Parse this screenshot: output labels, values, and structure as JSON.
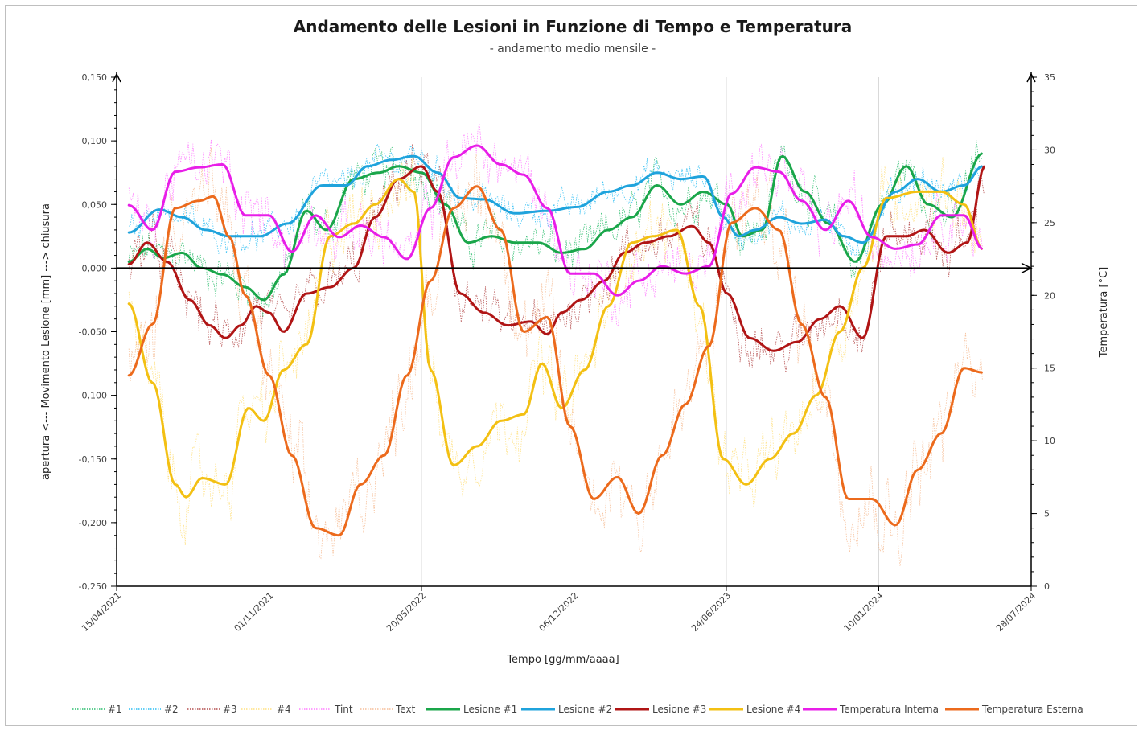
{
  "chart_data": {
    "type": "line",
    "title": "Andamento delle Lesioni in Funzione di Tempo e Temperatura",
    "subtitle": "- andamento medio mensile -",
    "xlabel": "Tempo   [gg/mm/aaaa]",
    "ylabel": "apertura   <---    Movimento Lesione   [mm]    --->   chiusura",
    "y2label": "Temperatura   [°C]",
    "x_axis": {
      "type": "date",
      "min": "2021-04-15",
      "max": "2024-07-28",
      "tick_labels": [
        "15/04/2021",
        "01/11/2021",
        "20/05/2022",
        "06/12/2022",
        "24/06/2023",
        "10/01/2024",
        "28/07/2024"
      ],
      "tick_dates": [
        "2021-04-15",
        "2021-11-01",
        "2022-05-20",
        "2022-12-06",
        "2023-06-24",
        "2024-01-10",
        "2024-07-28"
      ]
    },
    "y_axis": {
      "min": -0.25,
      "max": 0.15,
      "ticks": [
        0.15,
        0.1,
        0.05,
        0.0,
        -0.05,
        -0.1,
        -0.15,
        -0.2,
        -0.25
      ],
      "tick_labels": [
        "0,150",
        "0,100",
        "0,050",
        "0,000",
        "-0,050",
        "-0,100",
        "-0,150",
        "-0,200",
        "-0,250"
      ]
    },
    "y2_axis": {
      "min": 0,
      "max": 35,
      "ticks": [
        35,
        30,
        25,
        20,
        15,
        10,
        5,
        0
      ],
      "tick_labels": [
        "35",
        "30",
        "25",
        "20",
        "15",
        "10",
        "5",
        "0"
      ]
    },
    "grid": "vertical",
    "legend_position": "bottom",
    "series": [
      {
        "name": "#1",
        "axis": "y",
        "style": "dotted",
        "color": "#00b050",
        "raw_of": "Lesione #1",
        "noise": 0.014
      },
      {
        "name": "#2",
        "axis": "y",
        "style": "dotted",
        "color": "#00b0f0",
        "raw_of": "Lesione #2",
        "noise": 0.01
      },
      {
        "name": "#3",
        "axis": "y",
        "style": "dotted",
        "color": "#a52a2a",
        "raw_of": "Lesione #3",
        "noise": 0.016
      },
      {
        "name": "#4",
        "axis": "y",
        "style": "dotted",
        "color": "#ffd966",
        "raw_of": "Lesione #4",
        "noise": 0.022
      },
      {
        "name": "Tint",
        "axis": "y2",
        "style": "dotted",
        "color": "#ff66ff",
        "raw_of": "Temperatura Interna",
        "noise": 1.6
      },
      {
        "name": "Text",
        "axis": "y2",
        "style": "dotted",
        "color": "#f4b183",
        "raw_of": "Temperatura Esterna",
        "noise": 2.4
      },
      {
        "name": "Lesione #1",
        "axis": "y",
        "style": "solid",
        "color": "#1aa64a",
        "points": [
          [
            "2021-05-01",
            0.005
          ],
          [
            "2021-05-25",
            0.015
          ],
          [
            "2021-06-15",
            0.008
          ],
          [
            "2021-07-10",
            0.012
          ],
          [
            "2021-08-05",
            0.0
          ],
          [
            "2021-09-01",
            -0.005
          ],
          [
            "2021-10-01",
            -0.015
          ],
          [
            "2021-10-25",
            -0.025
          ],
          [
            "2021-11-20",
            -0.005
          ],
          [
            "2021-12-20",
            0.045
          ],
          [
            "2022-01-15",
            0.03
          ],
          [
            "2022-02-20",
            0.07
          ],
          [
            "2022-03-25",
            0.075
          ],
          [
            "2022-04-20",
            0.08
          ],
          [
            "2022-05-20",
            0.075
          ],
          [
            "2022-06-20",
            0.05
          ],
          [
            "2022-07-20",
            0.02
          ],
          [
            "2022-08-20",
            0.025
          ],
          [
            "2022-09-20",
            0.02
          ],
          [
            "2022-10-20",
            0.02
          ],
          [
            "2022-11-20",
            0.012
          ],
          [
            "2022-12-20",
            0.015
          ],
          [
            "2023-01-20",
            0.03
          ],
          [
            "2023-02-20",
            0.04
          ],
          [
            "2023-03-25",
            0.065
          ],
          [
            "2023-04-25",
            0.05
          ],
          [
            "2023-05-25",
            0.06
          ],
          [
            "2023-06-25",
            0.05
          ],
          [
            "2023-07-15",
            0.025
          ],
          [
            "2023-08-10",
            0.03
          ],
          [
            "2023-09-05",
            0.088
          ],
          [
            "2023-10-05",
            0.06
          ],
          [
            "2023-11-05",
            0.035
          ],
          [
            "2023-12-10",
            0.005
          ],
          [
            "2024-01-15",
            0.05
          ],
          [
            "2024-02-15",
            0.08
          ],
          [
            "2024-03-15",
            0.05
          ],
          [
            "2024-04-15",
            0.04
          ],
          [
            "2024-05-25",
            0.09
          ]
        ]
      },
      {
        "name": "Lesione #2",
        "axis": "y",
        "style": "solid",
        "color": "#1fa3dc",
        "points": [
          [
            "2021-05-01",
            0.028
          ],
          [
            "2021-06-10",
            0.046
          ],
          [
            "2021-07-10",
            0.04
          ],
          [
            "2021-08-10",
            0.03
          ],
          [
            "2021-09-10",
            0.025
          ],
          [
            "2021-10-20",
            0.025
          ],
          [
            "2021-11-25",
            0.035
          ],
          [
            "2022-01-10",
            0.065
          ],
          [
            "2022-02-10",
            0.065
          ],
          [
            "2022-03-10",
            0.08
          ],
          [
            "2022-04-10",
            0.085
          ],
          [
            "2022-05-10",
            0.088
          ],
          [
            "2022-06-10",
            0.075
          ],
          [
            "2022-07-10",
            0.055
          ],
          [
            "2022-08-10",
            0.054
          ],
          [
            "2022-09-20",
            0.043
          ],
          [
            "2022-11-01",
            0.045
          ],
          [
            "2022-12-10",
            0.048
          ],
          [
            "2023-01-20",
            0.06
          ],
          [
            "2023-02-20",
            0.065
          ],
          [
            "2023-03-25",
            0.075
          ],
          [
            "2023-04-25",
            0.07
          ],
          [
            "2023-05-25",
            0.072
          ],
          [
            "2023-06-20",
            0.04
          ],
          [
            "2023-07-10",
            0.025
          ],
          [
            "2023-08-01",
            0.03
          ],
          [
            "2023-09-01",
            0.04
          ],
          [
            "2023-10-01",
            0.035
          ],
          [
            "2023-11-01",
            0.038
          ],
          [
            "2023-11-25",
            0.025
          ],
          [
            "2023-12-20",
            0.02
          ],
          [
            "2024-02-01",
            0.06
          ],
          [
            "2024-03-01",
            0.07
          ],
          [
            "2024-04-01",
            0.06
          ],
          [
            "2024-05-01",
            0.065
          ],
          [
            "2024-05-25",
            0.08
          ]
        ]
      },
      {
        "name": "Lesione #3",
        "axis": "y",
        "style": "solid",
        "color": "#b01515",
        "points": [
          [
            "2021-05-01",
            0.003
          ],
          [
            "2021-05-25",
            0.02
          ],
          [
            "2021-06-20",
            0.005
          ],
          [
            "2021-07-20",
            -0.025
          ],
          [
            "2021-08-15",
            -0.045
          ],
          [
            "2021-09-05",
            -0.055
          ],
          [
            "2021-09-25",
            -0.045
          ],
          [
            "2021-10-15",
            -0.03
          ],
          [
            "2021-11-01",
            -0.035
          ],
          [
            "2021-11-20",
            -0.05
          ],
          [
            "2021-12-20",
            -0.02
          ],
          [
            "2022-01-20",
            -0.015
          ],
          [
            "2022-02-20",
            0.0
          ],
          [
            "2022-03-20",
            0.04
          ],
          [
            "2022-04-20",
            0.07
          ],
          [
            "2022-05-20",
            0.08
          ],
          [
            "2022-06-10",
            0.06
          ],
          [
            "2022-07-10",
            -0.02
          ],
          [
            "2022-08-10",
            -0.035
          ],
          [
            "2022-09-10",
            -0.045
          ],
          [
            "2022-10-10",
            -0.042
          ],
          [
            "2022-11-01",
            -0.052
          ],
          [
            "2022-11-20",
            -0.035
          ],
          [
            "2022-12-15",
            -0.025
          ],
          [
            "2023-01-15",
            -0.01
          ],
          [
            "2023-02-10",
            0.012
          ],
          [
            "2023-03-10",
            0.02
          ],
          [
            "2023-04-10",
            0.025
          ],
          [
            "2023-05-10",
            0.033
          ],
          [
            "2023-06-01",
            0.02
          ],
          [
            "2023-06-25",
            -0.02
          ],
          [
            "2023-07-25",
            -0.055
          ],
          [
            "2023-08-25",
            -0.065
          ],
          [
            "2023-09-25",
            -0.058
          ],
          [
            "2023-10-25",
            -0.04
          ],
          [
            "2023-11-20",
            -0.03
          ],
          [
            "2023-12-20",
            -0.055
          ],
          [
            "2024-01-20",
            0.025
          ],
          [
            "2024-02-15",
            0.025
          ],
          [
            "2024-03-10",
            0.03
          ],
          [
            "2024-04-10",
            0.012
          ],
          [
            "2024-05-05",
            0.02
          ],
          [
            "2024-05-28",
            0.08
          ]
        ]
      },
      {
        "name": "Lesione #4",
        "axis": "y",
        "style": "solid",
        "color": "#f3c013",
        "points": [
          [
            "2021-05-01",
            -0.028
          ],
          [
            "2021-06-01",
            -0.09
          ],
          [
            "2021-07-01",
            -0.17
          ],
          [
            "2021-07-15",
            -0.18
          ],
          [
            "2021-08-05",
            -0.165
          ],
          [
            "2021-09-05",
            -0.17
          ],
          [
            "2021-10-05",
            -0.11
          ],
          [
            "2021-10-25",
            -0.12
          ],
          [
            "2021-11-20",
            -0.08
          ],
          [
            "2021-12-20",
            -0.06
          ],
          [
            "2022-01-20",
            0.025
          ],
          [
            "2022-02-20",
            0.035
          ],
          [
            "2022-03-20",
            0.05
          ],
          [
            "2022-04-20",
            0.07
          ],
          [
            "2022-05-10",
            0.06
          ],
          [
            "2022-06-01",
            -0.08
          ],
          [
            "2022-07-01",
            -0.155
          ],
          [
            "2022-08-01",
            -0.14
          ],
          [
            "2022-09-01",
            -0.12
          ],
          [
            "2022-10-01",
            -0.115
          ],
          [
            "2022-10-25",
            -0.075
          ],
          [
            "2022-11-20",
            -0.11
          ],
          [
            "2022-12-20",
            -0.08
          ],
          [
            "2023-01-20",
            -0.03
          ],
          [
            "2023-02-20",
            0.02
          ],
          [
            "2023-03-20",
            0.025
          ],
          [
            "2023-04-20",
            0.03
          ],
          [
            "2023-05-20",
            -0.03
          ],
          [
            "2023-06-20",
            -0.15
          ],
          [
            "2023-07-20",
            -0.17
          ],
          [
            "2023-08-20",
            -0.15
          ],
          [
            "2023-09-20",
            -0.13
          ],
          [
            "2023-10-20",
            -0.1
          ],
          [
            "2023-11-20",
            -0.05
          ],
          [
            "2023-12-20",
            0.0
          ],
          [
            "2024-01-20",
            0.055
          ],
          [
            "2024-03-01",
            0.06
          ],
          [
            "2024-04-01",
            0.06
          ],
          [
            "2024-05-01",
            0.05
          ],
          [
            "2024-05-25",
            0.015
          ]
        ]
      },
      {
        "name": "Temperatura Interna",
        "axis": "y2",
        "style": "solid",
        "color": "#e81ee8",
        "points": [
          [
            "2021-05-01",
            26.2
          ],
          [
            "2021-06-01",
            24.5
          ],
          [
            "2021-07-01",
            28.5
          ],
          [
            "2021-08-01",
            28.8
          ],
          [
            "2021-09-01",
            29.0
          ],
          [
            "2021-10-01",
            25.5
          ],
          [
            "2021-11-01",
            25.5
          ],
          [
            "2021-12-01",
            23.0
          ],
          [
            "2022-01-01",
            25.5
          ],
          [
            "2022-02-01",
            24.0
          ],
          [
            "2022-03-01",
            24.8
          ],
          [
            "2022-04-01",
            24.0
          ],
          [
            "2022-05-01",
            22.5
          ],
          [
            "2022-06-01",
            26.0
          ],
          [
            "2022-07-01",
            29.5
          ],
          [
            "2022-08-01",
            30.3
          ],
          [
            "2022-09-01",
            29.0
          ],
          [
            "2022-10-01",
            28.3
          ],
          [
            "2022-11-01",
            26.0
          ],
          [
            "2022-12-01",
            21.5
          ],
          [
            "2023-01-01",
            21.5
          ],
          [
            "2023-02-01",
            20.0
          ],
          [
            "2023-03-01",
            21.0
          ],
          [
            "2023-04-01",
            22.0
          ],
          [
            "2023-05-01",
            21.5
          ],
          [
            "2023-06-01",
            22.0
          ],
          [
            "2023-07-01",
            27.0
          ],
          [
            "2023-08-01",
            28.8
          ],
          [
            "2023-09-01",
            28.5
          ],
          [
            "2023-10-01",
            26.5
          ],
          [
            "2023-11-01",
            24.5
          ],
          [
            "2023-12-01",
            26.5
          ],
          [
            "2024-01-01",
            24.0
          ],
          [
            "2024-02-01",
            23.2
          ],
          [
            "2024-03-01",
            23.5
          ],
          [
            "2024-04-01",
            25.5
          ],
          [
            "2024-05-01",
            25.5
          ],
          [
            "2024-05-25",
            23.2
          ]
        ]
      },
      {
        "name": "Temperatura Esterna",
        "axis": "y2",
        "style": "solid",
        "color": "#ec6a1c",
        "points": [
          [
            "2021-05-01",
            14.5
          ],
          [
            "2021-06-01",
            18.0
          ],
          [
            "2021-07-01",
            26.0
          ],
          [
            "2021-08-01",
            26.5
          ],
          [
            "2021-08-20",
            26.8
          ],
          [
            "2021-09-10",
            24.0
          ],
          [
            "2021-10-01",
            20.0
          ],
          [
            "2021-11-01",
            14.5
          ],
          [
            "2021-12-01",
            9.0
          ],
          [
            "2022-01-01",
            4.0
          ],
          [
            "2022-02-01",
            3.5
          ],
          [
            "2022-03-01",
            7.0
          ],
          [
            "2022-04-01",
            9.0
          ],
          [
            "2022-05-01",
            14.5
          ],
          [
            "2022-06-01",
            21.0
          ],
          [
            "2022-07-01",
            26.0
          ],
          [
            "2022-08-01",
            27.5
          ],
          [
            "2022-09-01",
            24.5
          ],
          [
            "2022-10-01",
            17.5
          ],
          [
            "2022-11-01",
            18.5
          ],
          [
            "2022-12-01",
            11.0
          ],
          [
            "2023-01-01",
            6.0
          ],
          [
            "2023-02-01",
            7.5
          ],
          [
            "2023-03-01",
            5.0
          ],
          [
            "2023-04-01",
            9.0
          ],
          [
            "2023-05-01",
            12.5
          ],
          [
            "2023-06-01",
            16.5
          ],
          [
            "2023-07-01",
            25.0
          ],
          [
            "2023-08-01",
            26.0
          ],
          [
            "2023-09-01",
            24.5
          ],
          [
            "2023-10-01",
            18.0
          ],
          [
            "2023-11-01",
            13.0
          ],
          [
            "2023-12-01",
            6.0
          ],
          [
            "2024-01-01",
            6.0
          ],
          [
            "2024-02-01",
            4.2
          ],
          [
            "2024-03-01",
            8.0
          ],
          [
            "2024-04-01",
            10.5
          ],
          [
            "2024-05-01",
            15.0
          ],
          [
            "2024-05-25",
            14.7
          ]
        ]
      }
    ]
  }
}
